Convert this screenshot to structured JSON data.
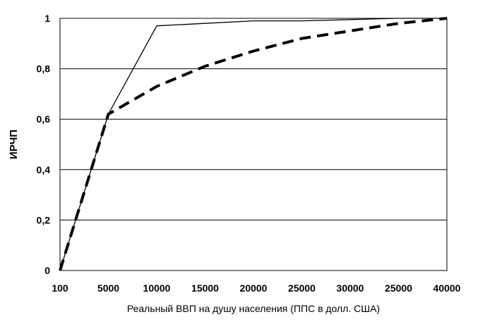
{
  "chart_data": {
    "type": "line",
    "title": "",
    "xlabel": "Реальный ВВП на душу населения (ППС в долл. США)",
    "ylabel": "ИРЧП",
    "categories": [
      "100",
      "5000",
      "10000",
      "15000",
      "20000",
      "25000",
      "30000",
      "25000",
      "40000"
    ],
    "ylim": [
      0,
      1
    ],
    "y_ticks": [
      "0",
      "0,2",
      "0,4",
      "0,6",
      "0,8",
      "1"
    ],
    "y_tick_values": [
      0,
      0.2,
      0.4,
      0.6,
      0.8,
      1
    ],
    "grid": "horizontal",
    "legend": "none",
    "series": [
      {
        "style": "solid",
        "color": "#000000",
        "values": [
          0,
          0.62,
          0.97,
          0.98,
          0.99,
          0.99,
          0.995,
          1,
          1
        ]
      },
      {
        "style": "dashed",
        "color": "#000000",
        "values": [
          0,
          0.62,
          0.73,
          0.81,
          0.87,
          0.92,
          0.95,
          0.98,
          1
        ]
      }
    ]
  }
}
